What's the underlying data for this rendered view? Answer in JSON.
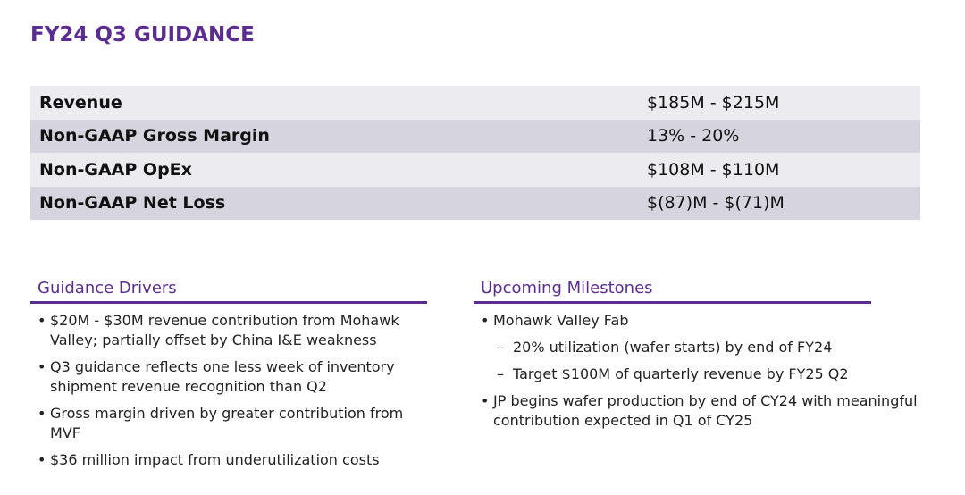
{
  "header": {
    "title": "FY24 Q3 GUIDANCE"
  },
  "table": {
    "rows": [
      [
        "Revenue",
        "$185M - $215M"
      ],
      [
        "Non-GAAP Gross Margin",
        "13% - 20%"
      ],
      [
        "Non-GAAP OpEx",
        "$108M - $110M"
      ],
      [
        "Non-GAAP Net Loss",
        "$(87)M - $(71)M"
      ]
    ]
  },
  "drivers": {
    "title": "Guidance Drivers",
    "items": [
      "$20M - $30M revenue contribution from Mohawk Valley; partially offset by China I&E weakness",
      "Q3 guidance reflects one less week of inventory shipment revenue recognition than Q2",
      "Gross margin driven by greater contribution from MVF",
      "$36 million impact from underutilization costs"
    ]
  },
  "milestones": {
    "title": "Upcoming Milestones",
    "items": [
      {
        "text": "Mohawk Valley Fab",
        "sub": [
          "20% utilization (wafer starts) by end of FY24",
          "Target $100M of quarterly revenue by FY25 Q2"
        ]
      },
      {
        "text": "JP begins wafer production by end of CY24 with meaningful contribution expected in Q1 of CY25",
        "sub": []
      }
    ]
  }
}
